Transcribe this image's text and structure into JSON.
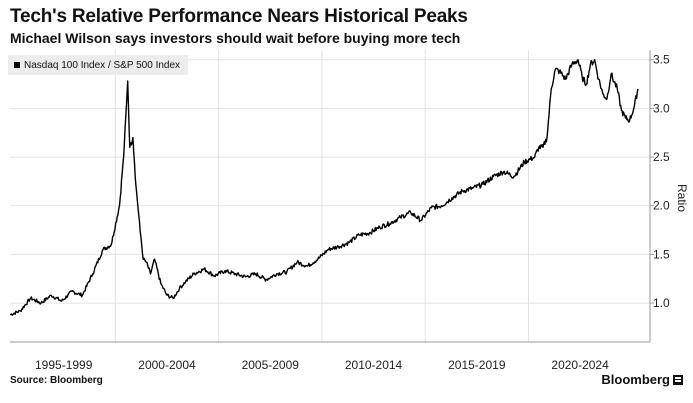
{
  "header": {
    "title": "Tech's Relative Performance Nears Historical Peaks",
    "subtitle": "Michael Wilson says investors should wait before buying more tech"
  },
  "footer": {
    "source": "Source: Bloomberg",
    "brand": "Bloomberg"
  },
  "colors": {
    "line": "#000000",
    "grid": "#e2e2e2",
    "legend_bg": "#ececec"
  },
  "chart_data": {
    "type": "line",
    "title": "Tech's Relative Performance Nears Historical Peaks",
    "subtitle": "Michael Wilson says investors should wait before buying more tech",
    "ylabel": "Ratio",
    "xlabel": "",
    "ylim": [
      0.6,
      3.6
    ],
    "xlim": [
      1994.4,
      2024.9
    ],
    "y_ticks": [
      1.0,
      1.5,
      2.0,
      2.5,
      3.0,
      3.5
    ],
    "y_tick_labels": [
      "1.0",
      "1.5",
      "2.0",
      "2.5",
      "3.0",
      "3.5"
    ],
    "x_ticks": [
      1997,
      2002,
      2007,
      2012,
      2017,
      2022
    ],
    "x_tick_labels": [
      "1995-1999",
      "2000-2004",
      "2005-2009",
      "2010-2014",
      "2015-2019",
      "2020-2024"
    ],
    "x_gridlines": [
      1999.5,
      2004.5,
      2009.5,
      2014.5,
      2019.5
    ],
    "legend": [
      "Nasdaq 100 Index / S&P 500 Index"
    ],
    "legend_position": "top-left",
    "series": [
      {
        "name": "Nasdaq 100 Index / S&P 500 Index",
        "x": [
          1994.4,
          1994.9,
          1995.4,
          1995.9,
          1996.4,
          1996.9,
          1997.4,
          1997.9,
          1998.4,
          1998.9,
          1999.3,
          1999.7,
          1999.9,
          2000.1,
          2000.2,
          2000.35,
          2000.5,
          2000.7,
          2000.85,
          2001.0,
          2001.2,
          2001.4,
          2001.7,
          2002.0,
          2002.3,
          2002.6,
          2002.9,
          2003.3,
          2003.8,
          2004.3,
          2004.8,
          2005.3,
          2005.8,
          2006.3,
          2006.8,
          2007.3,
          2007.8,
          2008.3,
          2008.8,
          2009.3,
          2009.8,
          2010.3,
          2010.8,
          2011.3,
          2011.8,
          2012.3,
          2012.8,
          2013.3,
          2013.8,
          2014.3,
          2014.8,
          2015.3,
          2015.8,
          2016.3,
          2016.8,
          2017.3,
          2017.8,
          2018.3,
          2018.8,
          2019.3,
          2019.8,
          2020.0,
          2020.2,
          2020.4,
          2020.6,
          2020.8,
          2021.0,
          2021.3,
          2021.6,
          2021.9,
          2022.1,
          2022.3,
          2022.5,
          2022.7,
          2022.9,
          2023.1,
          2023.3,
          2023.5,
          2023.8,
          2024.0,
          2024.2,
          2024.4,
          2024.6,
          2024.8
        ],
        "values": [
          0.88,
          0.92,
          1.05,
          1.0,
          1.08,
          1.02,
          1.12,
          1.08,
          1.3,
          1.55,
          1.6,
          2.0,
          2.5,
          3.28,
          2.6,
          2.7,
          2.2,
          1.75,
          1.45,
          1.42,
          1.3,
          1.45,
          1.2,
          1.08,
          1.05,
          1.15,
          1.22,
          1.3,
          1.35,
          1.28,
          1.33,
          1.3,
          1.27,
          1.3,
          1.24,
          1.3,
          1.32,
          1.42,
          1.38,
          1.45,
          1.55,
          1.58,
          1.62,
          1.7,
          1.72,
          1.78,
          1.82,
          1.88,
          1.93,
          1.85,
          1.98,
          2.0,
          2.08,
          2.15,
          2.18,
          2.22,
          2.3,
          2.35,
          2.3,
          2.45,
          2.5,
          2.6,
          2.6,
          2.7,
          3.2,
          3.4,
          3.38,
          3.3,
          3.45,
          3.5,
          3.32,
          3.25,
          3.45,
          3.5,
          3.3,
          3.15,
          3.1,
          3.35,
          3.2,
          2.98,
          2.9,
          2.88,
          3.0,
          3.2
        ]
      }
    ]
  }
}
